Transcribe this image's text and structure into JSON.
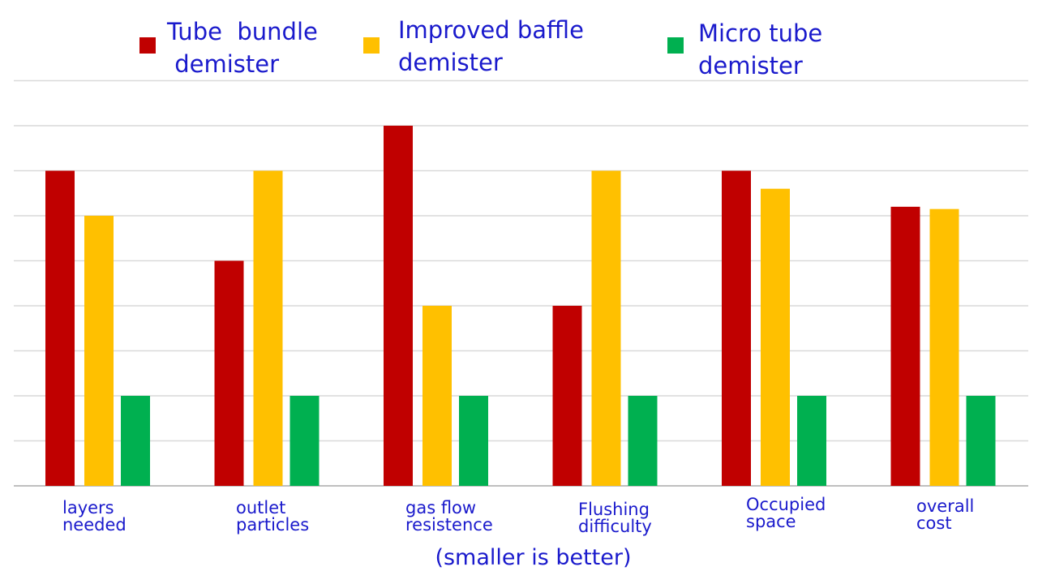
{
  "chart_data": {
    "type": "bar",
    "categories": [
      [
        "layers",
        "needed"
      ],
      [
        "outlet",
        "particles"
      ],
      [
        "gas flow",
        "resistence"
      ],
      [
        "Flushing",
        "difficulty"
      ],
      [
        "Occupied",
        "space"
      ],
      [
        "overall",
        "cost"
      ]
    ],
    "series": [
      {
        "name": "Tube  bundle\n demister",
        "color": "#c00000",
        "values": [
          7,
          5,
          8,
          4,
          7,
          6.2
        ]
      },
      {
        "name": "Improved baffle\ndemister",
        "color": "#ffc000",
        "values": [
          6,
          7,
          4,
          7,
          6.6,
          6.15
        ]
      },
      {
        "name": "Micro tube\ndemister",
        "color": "#00b050",
        "values": [
          2,
          2,
          2,
          2,
          2,
          2
        ]
      }
    ],
    "ylim": [
      0,
      9
    ],
    "grid": true,
    "legend_position": "top",
    "footnote": "(smaller is better)"
  }
}
